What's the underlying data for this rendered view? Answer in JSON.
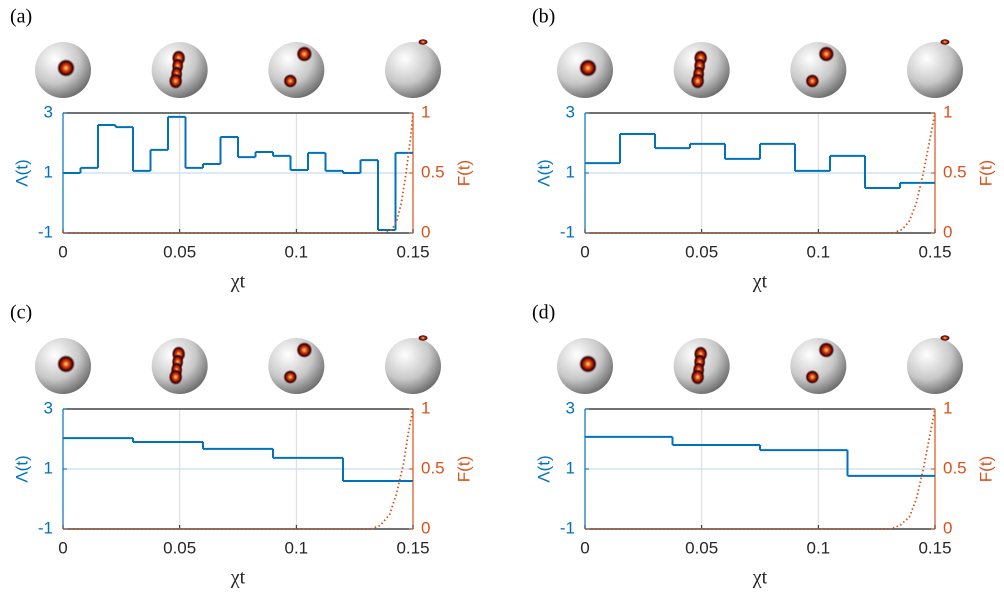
{
  "chart_data": [
    {
      "type": "step",
      "label": "(a)",
      "xlabel": "χt",
      "ylabel": "Λ(t)",
      "y2label": "F(t)",
      "xlim": [
        0,
        0.15
      ],
      "xticks": [
        0,
        0.05,
        0.1,
        0.15
      ],
      "ylim": [
        -1,
        3
      ],
      "yticks": [
        -1,
        1,
        3
      ],
      "y2lim": [
        0,
        1
      ],
      "y2ticks": [
        0,
        0.5,
        1
      ],
      "grid": true,
      "xgrid_color": "#d9d9d9",
      "ygrid_color": "#cfe4f3",
      "y_axis_color": "#0072bd",
      "y2_axis_color": "#d95319",
      "series": [
        {
          "color": "#0072bd",
          "x": [
            0,
            0.0075,
            0.015,
            0.0225,
            0.03,
            0.0375,
            0.045,
            0.0525,
            0.06,
            0.0675,
            0.075,
            0.0825,
            0.09,
            0.0975,
            0.105,
            0.1125,
            0.12,
            0.1275,
            0.135,
            0.1425
          ],
          "values": [
            1.0,
            1.17,
            2.6,
            2.53,
            1.07,
            1.77,
            2.87,
            1.17,
            1.3,
            2.2,
            1.53,
            1.7,
            1.57,
            1.1,
            1.67,
            1.07,
            1.0,
            1.43,
            -0.9,
            1.67
          ]
        },
        {
          "color": "#d95319",
          "axis": "y2",
          "linestyle": "dotted",
          "x": [
            0,
            0.138,
            0.141,
            0.143,
            0.145,
            0.147,
            0.149,
            0.15
          ],
          "values": [
            0,
            0,
            0.03,
            0.1,
            0.25,
            0.5,
            0.8,
            1
          ]
        }
      ]
    },
    {
      "type": "step",
      "label": "(b)",
      "xlabel": "χt",
      "ylabel": "Λ(t)",
      "y2label": "F(t)",
      "xlim": [
        0,
        0.15
      ],
      "xticks": [
        0,
        0.05,
        0.1,
        0.15
      ],
      "ylim": [
        -1,
        3
      ],
      "yticks": [
        -1,
        1,
        3
      ],
      "y2lim": [
        0,
        1
      ],
      "y2ticks": [
        0,
        0.5,
        1
      ],
      "grid": true,
      "xgrid_color": "#d9d9d9",
      "ygrid_color": "#cfe4f3",
      "y_axis_color": "#0072bd",
      "y2_axis_color": "#d95319",
      "series": [
        {
          "color": "#0072bd",
          "x": [
            0,
            0.015,
            0.03,
            0.045,
            0.06,
            0.075,
            0.09,
            0.105,
            0.12,
            0.135
          ],
          "values": [
            1.33,
            2.3,
            1.83,
            1.97,
            1.47,
            1.97,
            1.07,
            1.57,
            0.5,
            0.67
          ]
        },
        {
          "color": "#d95319",
          "axis": "y2",
          "linestyle": "dotted",
          "x": [
            0,
            0.132,
            0.136,
            0.139,
            0.142,
            0.145,
            0.148,
            0.15
          ],
          "values": [
            0,
            0,
            0.03,
            0.1,
            0.25,
            0.5,
            0.8,
            1
          ]
        }
      ]
    },
    {
      "type": "step",
      "label": "(c)",
      "xlabel": "χt",
      "ylabel": "Λ(t)",
      "y2label": "F(t)",
      "xlim": [
        0,
        0.15
      ],
      "xticks": [
        0,
        0.05,
        0.1,
        0.15
      ],
      "ylim": [
        -1,
        3
      ],
      "yticks": [
        -1,
        1,
        3
      ],
      "y2lim": [
        0,
        1
      ],
      "y2ticks": [
        0,
        0.5,
        1
      ],
      "grid": true,
      "xgrid_color": "#d9d9d9",
      "ygrid_color": "#cfe4f3",
      "y_axis_color": "#0072bd",
      "y2_axis_color": "#d95319",
      "series": [
        {
          "color": "#0072bd",
          "x": [
            0,
            0.03,
            0.06,
            0.09,
            0.12
          ],
          "values": [
            2.03,
            1.9,
            1.67,
            1.37,
            0.6
          ]
        },
        {
          "color": "#d95319",
          "axis": "y2",
          "linestyle": "dotted",
          "x": [
            0,
            0.132,
            0.136,
            0.14,
            0.143,
            0.146,
            0.148,
            0.15
          ],
          "values": [
            0,
            0,
            0.03,
            0.12,
            0.3,
            0.55,
            0.8,
            1
          ]
        }
      ]
    },
    {
      "type": "step",
      "label": "(d)",
      "xlabel": "χt",
      "ylabel": "Λ(t)",
      "y2label": "F(t)",
      "xlim": [
        0,
        0.15
      ],
      "xticks": [
        0,
        0.05,
        0.1,
        0.15
      ],
      "ylim": [
        -1,
        3
      ],
      "yticks": [
        -1,
        1,
        3
      ],
      "y2lim": [
        0,
        1
      ],
      "y2ticks": [
        0,
        0.5,
        1
      ],
      "grid": true,
      "xgrid_color": "#d9d9d9",
      "ygrid_color": "#cfe4f3",
      "y_axis_color": "#0072bd",
      "y2_axis_color": "#d95319",
      "series": [
        {
          "color": "#0072bd",
          "x": [
            0,
            0.0375,
            0.075,
            0.1125
          ],
          "values": [
            2.07,
            1.8,
            1.63,
            0.77
          ]
        },
        {
          "color": "#d95319",
          "axis": "y2",
          "linestyle": "dotted",
          "x": [
            0,
            0.131,
            0.135,
            0.139,
            0.142,
            0.145,
            0.148,
            0.15
          ],
          "values": [
            0,
            0,
            0.03,
            0.1,
            0.25,
            0.5,
            0.8,
            1
          ]
        }
      ]
    }
  ]
}
